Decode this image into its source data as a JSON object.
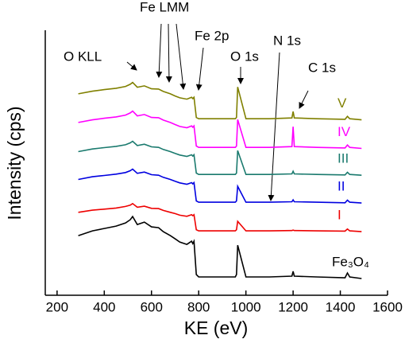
{
  "chart_data": {
    "type": "line",
    "x_label": "KE (eV)",
    "y_label": "Intensity (cps)",
    "xlim": [
      150,
      1600
    ],
    "xticks": [
      200,
      400,
      600,
      800,
      1000,
      1200,
      1400,
      1600
    ],
    "ylim": [
      0,
      100
    ],
    "annotations": [
      "O KLL",
      "Fe LMM",
      "Fe 2p",
      "O 1s",
      "N 1s",
      "C 1s"
    ],
    "x": [
      290,
      350,
      400,
      450,
      490,
      510,
      520,
      540,
      570,
      600,
      630,
      650,
      680,
      700,
      720,
      750,
      770,
      775,
      780,
      790,
      800,
      900,
      955,
      960,
      965,
      1000,
      1100,
      1195,
      1200,
      1205,
      1300,
      1420,
      1430,
      1440,
      1490
    ],
    "series": [
      {
        "name": "Fe₃O₄",
        "color": "#000000",
        "values": [
          22.5,
          24.3,
          25.2,
          26.1,
          27.3,
          28.5,
          29.7,
          26.7,
          27.6,
          25.8,
          25.5,
          24.0,
          22.5,
          21.3,
          20.1,
          19.2,
          20.4,
          19.5,
          20.4,
          7.8,
          6.9,
          6.9,
          6.9,
          7.8,
          18.9,
          6.9,
          6.9,
          7.2,
          9.0,
          7.2,
          6.9,
          6.6,
          8.4,
          6.9,
          6.3
        ]
      },
      {
        "name": "I",
        "color": "#ee0000",
        "values": [
          31.3,
          32.1,
          32.5,
          32.9,
          33.5,
          34.0,
          34.6,
          33.2,
          33.6,
          32.8,
          32.7,
          32.0,
          31.3,
          30.8,
          30.2,
          29.8,
          30.4,
          30.0,
          30.4,
          24.7,
          24.3,
          24.3,
          24.3,
          24.7,
          27.9,
          24.3,
          24.3,
          24.4,
          24.6,
          24.4,
          24.3,
          24.2,
          25.0,
          24.3,
          24.0
        ]
      },
      {
        "name": "II",
        "color": "#0000e0",
        "values": [
          43.7,
          44.7,
          45.2,
          45.7,
          46.3,
          47.0,
          47.6,
          46.0,
          46.5,
          45.5,
          45.3,
          44.5,
          43.7,
          43.0,
          42.4,
          41.9,
          42.5,
          42.0,
          42.5,
          35.6,
          35.1,
          35.1,
          35.1,
          35.6,
          41.1,
          35.1,
          35.1,
          35.3,
          36.0,
          35.3,
          35.1,
          34.9,
          35.9,
          35.1,
          34.8
        ]
      },
      {
        "name": "III",
        "color": "#1a7a6e",
        "values": [
          54.2,
          55.2,
          55.7,
          56.2,
          56.8,
          57.5,
          58.1,
          56.5,
          57.0,
          56.0,
          55.8,
          55.0,
          54.2,
          53.5,
          52.9,
          52.4,
          53.0,
          52.5,
          53.0,
          46.1,
          45.6,
          45.6,
          45.6,
          46.1,
          54.6,
          45.6,
          45.6,
          45.8,
          46.8,
          45.8,
          45.6,
          45.4,
          46.4,
          45.6,
          45.3
        ]
      },
      {
        "name": "IV",
        "color": "#ff00ff",
        "values": [
          65.2,
          66.2,
          66.8,
          67.3,
          68.0,
          68.8,
          69.5,
          67.7,
          68.2,
          67.1,
          67.0,
          66.1,
          65.2,
          64.4,
          63.7,
          63.2,
          63.9,
          63.4,
          63.9,
          56.3,
          55.8,
          55.8,
          55.8,
          56.3,
          66.3,
          55.8,
          55.8,
          56.1,
          63.6,
          56.1,
          55.8,
          55.6,
          56.7,
          55.8,
          55.4
        ]
      },
      {
        "name": "V",
        "color": "#808000",
        "values": [
          76.0,
          77.0,
          77.6,
          78.1,
          78.8,
          79.6,
          80.3,
          78.5,
          79.0,
          77.9,
          77.8,
          76.9,
          76.0,
          75.2,
          74.5,
          74.0,
          74.7,
          74.2,
          74.7,
          67.1,
          66.6,
          66.6,
          66.6,
          67.1,
          78.6,
          66.6,
          66.6,
          66.9,
          69.3,
          66.9,
          66.6,
          66.4,
          67.5,
          66.6,
          66.2
        ]
      }
    ]
  }
}
